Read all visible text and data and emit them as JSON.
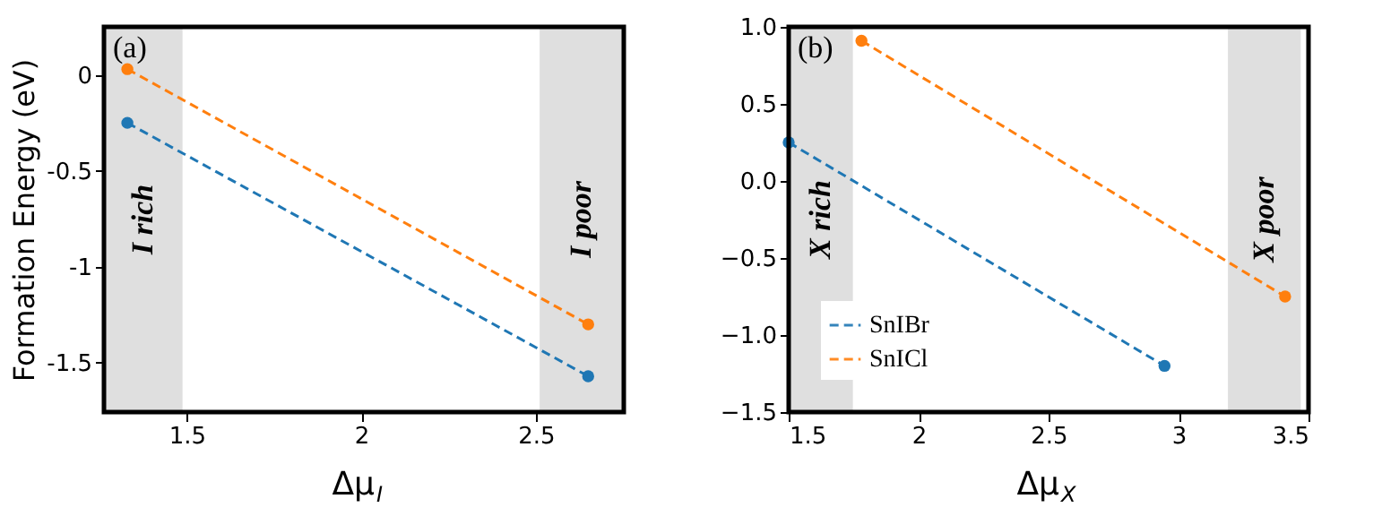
{
  "chart_data": [
    {
      "type": "line",
      "xlabel": "Δμ$_{I}$",
      "ylabel": "Formation  Energy (eV)",
      "annotations": [
        "(a)"
      ],
      "xlim": [
        1.263,
        2.752
      ],
      "ylim": [
        -1.757,
        0.25
      ],
      "xticks": [
        1.5,
        2,
        2.5
      ],
      "yticks": [
        0,
        -0.5,
        -1,
        -1.5
      ],
      "x": [
        1.33,
        2.65
      ],
      "marker": "circle",
      "line_style": "dashed",
      "grid": false,
      "legend": false,
      "series": [
        {
          "color": "#1f77b4",
          "values": [
            -0.25,
            -1.57
          ]
        },
        {
          "color": "#ff7f0e",
          "values": [
            0.03,
            -1.3
          ]
        }
      ],
      "bands": [
        {
          "axis": "x",
          "from": 1.263,
          "to": 1.488,
          "label": "I rich",
          "color": "#dcdcdc"
        },
        {
          "axis": "x",
          "from": 2.511,
          "to": 2.752,
          "label": "I poor",
          "color": "#dcdcdc"
        }
      ]
    },
    {
      "type": "line",
      "xlabel": "Δμ$_{X}$",
      "annotations": [
        "(b)"
      ],
      "xlim": [
        1.5,
        3.5
      ],
      "ylim": [
        -1.5,
        1.0
      ],
      "xticks": [
        1.5,
        2,
        2.5,
        3,
        3.5
      ],
      "yticks": [
        {
          "value": -1.5,
          "label": "−1.5"
        },
        {
          "value": -1.0,
          "label": "−1.0"
        },
        {
          "value": -0.5,
          "label": "−0.5"
        },
        {
          "value": 0,
          "label": "0.0"
        },
        {
          "value": 0.5,
          "label": "0.5"
        },
        {
          "value": 1.0,
          "label": "1.0"
        }
      ],
      "marker": "circle",
      "line_style": "dashed",
      "grid": false,
      "legend": "bottom left",
      "series": [
        {
          "name": "SnIBr",
          "color": "#1f77b4",
          "x": [
            1.5,
            2.946
          ],
          "values": [
            0.25,
            -1.2
          ]
        },
        {
          "name": "SnICl",
          "color": "#ff7f0e",
          "x": [
            1.78,
            3.41
          ],
          "values": [
            0.91,
            -0.75
          ]
        }
      ],
      "bands": [
        {
          "axis": "x",
          "from": 1.5,
          "to": 1.747,
          "label": "X rich",
          "color": "#dcdcdc"
        },
        {
          "axis": "x",
          "from": 3.19,
          "to": 3.47,
          "label": "X poor",
          "color": "#dcdcdc"
        }
      ]
    }
  ]
}
